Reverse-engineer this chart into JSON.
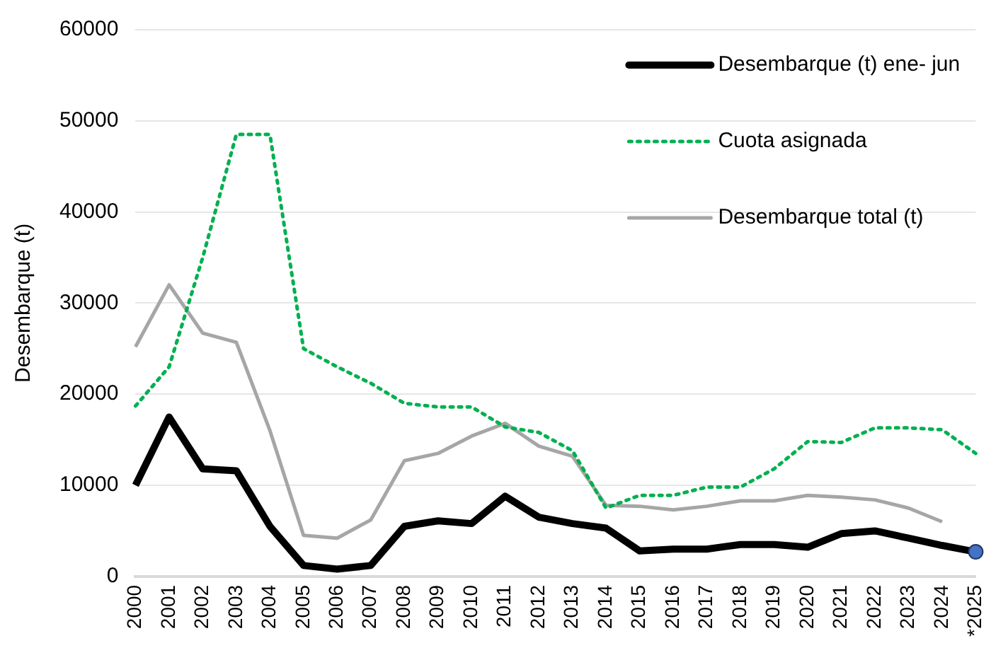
{
  "chart_data": {
    "type": "line",
    "ylabel": "Desembarque (t)",
    "categories": [
      "2000",
      "2001",
      "2002",
      "2003",
      "2004",
      "2005",
      "2006",
      "2007",
      "2008",
      "2009",
      "2010",
      "2011",
      "2012",
      "2013",
      "2014",
      "2015",
      "2016",
      "2017",
      "2018",
      "2019",
      "2020",
      "2021",
      "2022",
      "2023",
      "2024",
      "*2025"
    ],
    "ylim": [
      0,
      60000
    ],
    "yticks": [
      0,
      10000,
      20000,
      30000,
      40000,
      50000,
      60000
    ],
    "grid": "y",
    "legend": "top right",
    "marker": "none",
    "series": [
      {
        "name": "Desembarque (t) ene- jun",
        "color": "#000000",
        "line_style": "solid",
        "values": [
          10000,
          17500,
          11800,
          11600,
          5500,
          1200,
          800,
          1200,
          5500,
          6100,
          5800,
          8800,
          6500,
          5800,
          5300,
          2800,
          3000,
          3000,
          3500,
          3500,
          3200,
          4700,
          5000,
          4200,
          3400,
          2700
        ]
      },
      {
        "name": "Cuota asignada",
        "color": "#00b050",
        "line_style": "dotted",
        "values": [
          18700,
          23000,
          35000,
          48500,
          48500,
          25000,
          23000,
          21200,
          19000,
          18600,
          18600,
          16400,
          15800,
          13800,
          7500,
          8900,
          8900,
          9800,
          9800,
          11800,
          14800,
          14700,
          16300,
          16300,
          16100,
          13500
        ]
      },
      {
        "name": "Desembarque total (t)",
        "color": "#a6a6a6",
        "line_style": "solid",
        "values": [
          25200,
          32000,
          26700,
          25700,
          16000,
          4500,
          4200,
          6200,
          12700,
          13500,
          15400,
          16800,
          14300,
          13200,
          7800,
          7700,
          7300,
          7700,
          8300,
          8300,
          8900,
          8700,
          8400,
          7500,
          6000,
          null
        ]
      },
      {
        "type": "scatter",
        "color": "#4472c4",
        "marker": "circle",
        "x": [
          "*2025"
        ],
        "values": [
          2700
        ]
      }
    ]
  }
}
